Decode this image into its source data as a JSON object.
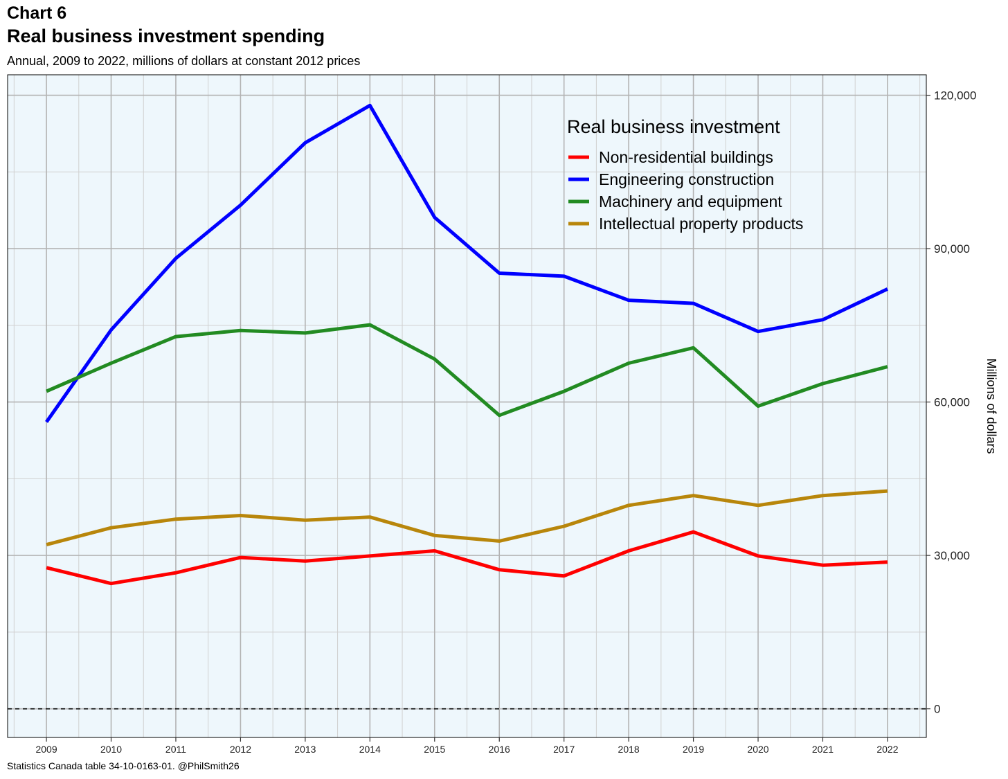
{
  "header": {
    "label": "Chart 6",
    "title": "Real business investment spending",
    "subtitle": "Annual, 2009 to 2022, millions of dollars at constant 2012 prices"
  },
  "caption": "Statistics Canada table 34-10-0163-01. @PhilSmith26",
  "colors": {
    "panel_background": "#eef7fc",
    "grid_major": "#b3b3b3",
    "grid_minor": "#d0d0d0",
    "zero_line": "#000000"
  },
  "chart_data": {
    "type": "line",
    "x": [
      2009,
      2010,
      2011,
      2012,
      2013,
      2014,
      2015,
      2016,
      2017,
      2018,
      2019,
      2020,
      2021,
      2022
    ],
    "x_tick_labels": [
      "2009",
      "2010",
      "2011",
      "2012",
      "2013",
      "2014",
      "2015",
      "2016",
      "2017",
      "2018",
      "2019",
      "2020",
      "2021",
      "2022"
    ],
    "ylabel": "Millions of dollars",
    "y_axis_side": "right",
    "ylim": [
      -5600,
      124000
    ],
    "xlim": [
      2008.4,
      2022.6
    ],
    "y_ticks": [
      0,
      30000,
      60000,
      90000,
      120000
    ],
    "y_tick_labels": [
      "0",
      "30,000",
      "60,000",
      "90,000",
      "120,000"
    ],
    "grid": true,
    "zero_reference_line": "dashed",
    "legend": {
      "title": "Real business investment",
      "placement": "top-right"
    },
    "series": [
      {
        "name": "Non-residential buildings",
        "color": "#ff0000",
        "values": [
          27600,
          24500,
          26600,
          29600,
          28900,
          29900,
          30900,
          27200,
          26000,
          30900,
          34600,
          29900,
          28100,
          28700
        ]
      },
      {
        "name": "Engineering construction",
        "color": "#0000ff",
        "values": [
          56100,
          74100,
          88100,
          98500,
          110700,
          118000,
          96100,
          85200,
          84600,
          79900,
          79300,
          73800,
          76100,
          82100
        ]
      },
      {
        "name": "Machinery and equipment",
        "color": "#228b22",
        "values": [
          62100,
          67600,
          72800,
          74000,
          73500,
          75100,
          68400,
          57400,
          62100,
          67600,
          70600,
          59200,
          63600,
          66900
        ]
      },
      {
        "name": "Intellectual property products",
        "color": "#b8860b",
        "values": [
          32100,
          35400,
          37100,
          37800,
          36900,
          37500,
          33900,
          32800,
          35700,
          39800,
          41700,
          39800,
          41700,
          42600
        ]
      }
    ]
  }
}
